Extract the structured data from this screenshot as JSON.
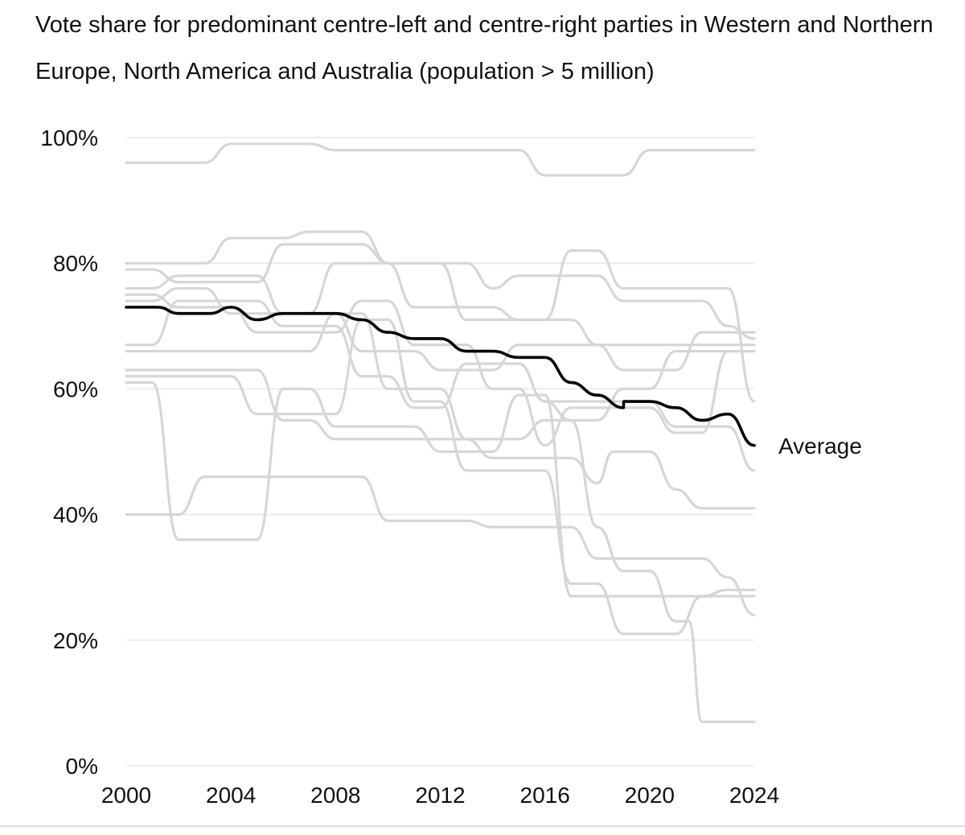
{
  "chart_data": {
    "type": "line",
    "title": "Vote share for predominant centre-left and centre-right parties in Western and Northern Europe, North America and Australia (population > 5 million)",
    "xlabel": "",
    "ylabel": "",
    "xlim": [
      2000,
      2024
    ],
    "ylim": [
      0,
      100
    ],
    "x_ticks": [
      "2000",
      "2004",
      "2008",
      "2012",
      "2016",
      "2020",
      "2024"
    ],
    "y_ticks": [
      "0%",
      "20%",
      "40%",
      "60%",
      "80%",
      "100%"
    ],
    "grid": true,
    "highlight_color": "#000000",
    "background_series_color": "#d6d6d6",
    "grid_color": "#ececec",
    "average": {
      "name": "Average",
      "points": [
        [
          2000,
          73
        ],
        [
          2001.2,
          73
        ],
        [
          2002,
          72
        ],
        [
          2003.2,
          72
        ],
        [
          2004,
          73
        ],
        [
          2005,
          71
        ],
        [
          2006,
          72
        ],
        [
          2008,
          72
        ],
        [
          2009,
          71
        ],
        [
          2010,
          69
        ],
        [
          2011,
          68
        ],
        [
          2012,
          68
        ],
        [
          2013,
          66
        ],
        [
          2014,
          66
        ],
        [
          2015,
          65
        ],
        [
          2016,
          65
        ],
        [
          2017,
          61
        ],
        [
          2018,
          59
        ],
        [
          2019,
          57
        ],
        [
          2019.01,
          58
        ],
        [
          2020,
          58
        ],
        [
          2021,
          57
        ],
        [
          2022,
          55
        ],
        [
          2023,
          56
        ],
        [
          2024,
          51
        ]
      ]
    },
    "series": [
      {
        "points": [
          [
            2000,
            96
          ],
          [
            2003,
            96
          ],
          [
            2004,
            99
          ],
          [
            2007,
            99
          ],
          [
            2008,
            98
          ],
          [
            2015,
            98
          ],
          [
            2016,
            94
          ],
          [
            2019,
            94
          ],
          [
            2020,
            98
          ],
          [
            2024,
            98
          ]
        ]
      },
      {
        "points": [
          [
            2000,
            80
          ],
          [
            2003,
            80
          ],
          [
            2004,
            84
          ],
          [
            2006,
            84
          ],
          [
            2007,
            85
          ],
          [
            2009,
            85
          ],
          [
            2010,
            80
          ],
          [
            2013,
            80
          ],
          [
            2014,
            76
          ],
          [
            2015,
            78
          ],
          [
            2018,
            78
          ],
          [
            2019,
            74
          ],
          [
            2022,
            74
          ],
          [
            2023,
            70
          ],
          [
            2024,
            68
          ]
        ]
      },
      {
        "points": [
          [
            2000,
            79
          ],
          [
            2001,
            79
          ],
          [
            2002,
            77
          ],
          [
            2005,
            77
          ],
          [
            2006,
            83
          ],
          [
            2009,
            83
          ],
          [
            2010,
            80
          ],
          [
            2012,
            80
          ],
          [
            2013,
            71
          ],
          [
            2016,
            71
          ],
          [
            2017,
            82
          ],
          [
            2018,
            82
          ],
          [
            2019,
            76
          ],
          [
            2023,
            76
          ],
          [
            2024,
            58
          ]
        ]
      },
      {
        "points": [
          [
            2000,
            76
          ],
          [
            2001,
            76
          ],
          [
            2002,
            78
          ],
          [
            2005,
            78
          ],
          [
            2006,
            72
          ],
          [
            2007,
            72
          ],
          [
            2008,
            80
          ],
          [
            2010,
            80
          ],
          [
            2011,
            73
          ],
          [
            2014,
            73
          ],
          [
            2015,
            71
          ],
          [
            2017,
            71
          ],
          [
            2018,
            67
          ],
          [
            2024,
            67
          ]
        ]
      },
      {
        "points": [
          [
            2000,
            75
          ],
          [
            2001,
            75
          ],
          [
            2002,
            73
          ],
          [
            2004,
            73
          ],
          [
            2005,
            69
          ],
          [
            2008,
            69
          ],
          [
            2009,
            74
          ],
          [
            2010,
            74
          ],
          [
            2011,
            67
          ],
          [
            2013,
            67
          ],
          [
            2014,
            60
          ],
          [
            2015,
            60
          ],
          [
            2016,
            51
          ],
          [
            2017,
            57
          ],
          [
            2020,
            57
          ],
          [
            2021,
            53
          ],
          [
            2022,
            53
          ],
          [
            2023,
            66
          ],
          [
            2024,
            66
          ]
        ]
      },
      {
        "points": [
          [
            2000,
            74
          ],
          [
            2001,
            74
          ],
          [
            2002,
            76
          ],
          [
            2003,
            76
          ],
          [
            2004,
            72
          ],
          [
            2008,
            72
          ],
          [
            2009,
            66
          ],
          [
            2011,
            66
          ],
          [
            2012,
            63
          ],
          [
            2014,
            63
          ],
          [
            2015,
            67
          ],
          [
            2018,
            67
          ],
          [
            2019,
            63
          ],
          [
            2021,
            63
          ],
          [
            2022,
            69
          ],
          [
            2024,
            69
          ]
        ]
      },
      {
        "points": [
          [
            2000,
            67
          ],
          [
            2001,
            67
          ],
          [
            2002,
            74
          ],
          [
            2005,
            74
          ],
          [
            2006,
            70
          ],
          [
            2008,
            70
          ],
          [
            2009,
            62
          ],
          [
            2010,
            62
          ],
          [
            2011,
            57
          ],
          [
            2012,
            57
          ],
          [
            2013,
            64
          ],
          [
            2015,
            64
          ],
          [
            2016,
            58
          ],
          [
            2020,
            58
          ],
          [
            2021,
            54
          ],
          [
            2023,
            54
          ],
          [
            2024,
            47
          ]
        ]
      },
      {
        "points": [
          [
            2000,
            66
          ],
          [
            2007,
            66
          ],
          [
            2008,
            72
          ],
          [
            2009,
            72
          ],
          [
            2010,
            60
          ],
          [
            2012,
            60
          ],
          [
            2013,
            52
          ],
          [
            2015,
            52
          ],
          [
            2016,
            55
          ],
          [
            2018,
            55
          ],
          [
            2019,
            60
          ],
          [
            2020,
            60
          ],
          [
            2021,
            66
          ],
          [
            2024,
            66
          ]
        ]
      },
      {
        "points": [
          [
            2000,
            63
          ],
          [
            2005,
            63
          ],
          [
            2006,
            55
          ],
          [
            2007,
            55
          ],
          [
            2008,
            52
          ],
          [
            2013,
            52
          ],
          [
            2014,
            49
          ],
          [
            2017,
            49
          ],
          [
            2018,
            45
          ],
          [
            2018.6,
            50
          ],
          [
            2020,
            50
          ],
          [
            2021,
            44
          ],
          [
            2022,
            41
          ],
          [
            2024,
            41
          ]
        ]
      },
      {
        "points": [
          [
            2000,
            62
          ],
          [
            2004,
            62
          ],
          [
            2005,
            56
          ],
          [
            2008,
            56
          ],
          [
            2009,
            71
          ],
          [
            2010,
            71
          ],
          [
            2011,
            58
          ],
          [
            2012,
            58
          ],
          [
            2013,
            47
          ],
          [
            2016,
            47
          ],
          [
            2017,
            29
          ],
          [
            2018,
            29
          ],
          [
            2019,
            21
          ],
          [
            2021,
            21
          ],
          [
            2022,
            27
          ],
          [
            2024,
            27
          ]
        ]
      },
      {
        "points": [
          [
            2000,
            61
          ],
          [
            2001,
            61
          ],
          [
            2002,
            36
          ],
          [
            2005,
            36
          ],
          [
            2006,
            60
          ],
          [
            2007,
            60
          ],
          [
            2008,
            54
          ],
          [
            2011,
            54
          ],
          [
            2012,
            50
          ],
          [
            2014,
            50
          ],
          [
            2015,
            59
          ],
          [
            2016,
            59
          ],
          [
            2017,
            27
          ],
          [
            2022,
            27
          ],
          [
            2023,
            28
          ],
          [
            2024,
            28
          ]
        ]
      },
      {
        "points": [
          [
            2000,
            40
          ],
          [
            2002,
            40
          ],
          [
            2003,
            46
          ],
          [
            2009,
            46
          ],
          [
            2010,
            39
          ],
          [
            2013,
            39
          ],
          [
            2014,
            38
          ],
          [
            2017,
            38
          ],
          [
            2018,
            33
          ],
          [
            2022,
            33
          ],
          [
            2023,
            30
          ],
          [
            2024,
            24
          ]
        ]
      },
      {
        "points": [
          [
            2016,
            58
          ],
          [
            2017,
            55
          ],
          [
            2018,
            38
          ],
          [
            2019,
            31
          ],
          [
            2020,
            31
          ],
          [
            2021,
            23
          ],
          [
            2021.5,
            23
          ],
          [
            2022,
            7
          ],
          [
            2024,
            7
          ]
        ]
      }
    ]
  }
}
